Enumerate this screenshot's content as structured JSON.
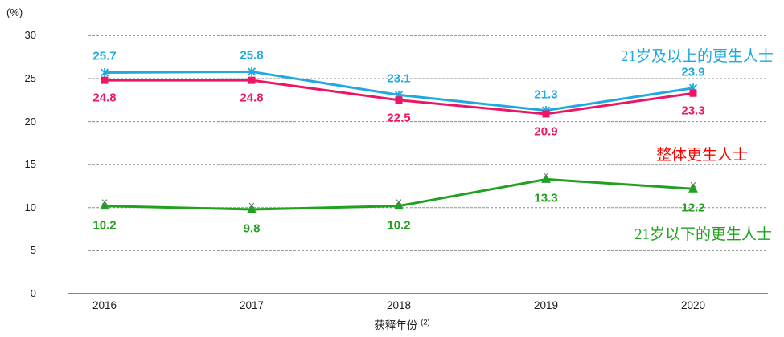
{
  "chart_data": {
    "type": "line",
    "title": "",
    "ylabel": "(%)",
    "xlabel": "获释年份",
    "xlabel_superscript": "(2)",
    "ylim": [
      0,
      30
    ],
    "yticks": [
      0,
      5,
      10,
      15,
      20,
      25,
      30
    ],
    "grid": true,
    "legend_position": "inline-right",
    "categories": [
      "2016",
      "2017",
      "2018",
      "2019",
      "2020"
    ],
    "series": [
      {
        "name": "21岁及以上的更生人士",
        "values": [
          25.7,
          25.8,
          23.1,
          21.3,
          23.9
        ],
        "color": "#1FA9E0",
        "marker": "asterisk",
        "label_position": "above",
        "label_dy": -20
      },
      {
        "name": "整体更生人士",
        "values": [
          24.8,
          24.8,
          22.5,
          20.9,
          23.3
        ],
        "color": "#EC1566",
        "name_color": "#FF0000",
        "marker": "square",
        "label_position": "below",
        "label_dy": 22
      },
      {
        "name": "21岁以下的更生人士",
        "values": [
          10.2,
          9.8,
          10.2,
          13.3,
          12.2
        ],
        "color": "#21A121",
        "marker": "triangle",
        "label_position": "below",
        "label_dy": 24
      }
    ]
  }
}
